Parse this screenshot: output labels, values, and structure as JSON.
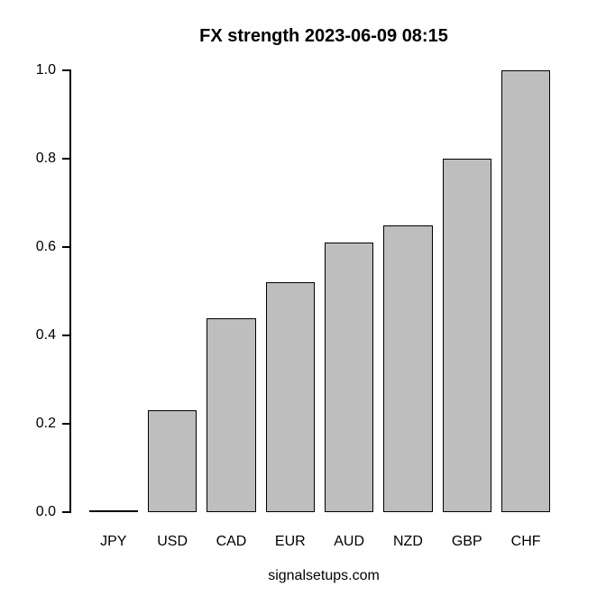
{
  "chart_data": {
    "type": "bar",
    "title": "FX strength 2023-06-09 08:15",
    "categories": [
      "JPY",
      "USD",
      "CAD",
      "EUR",
      "AUD",
      "NZD",
      "GBP",
      "CHF"
    ],
    "values": [
      0.0,
      0.23,
      0.44,
      0.52,
      0.61,
      0.65,
      0.8,
      1.0
    ],
    "xlabel": "",
    "ylabel": "",
    "ylim": [
      0.0,
      1.0
    ],
    "yticks": [
      0.0,
      0.2,
      0.4,
      0.6,
      0.8,
      1.0
    ],
    "ytick_labels": [
      "0.0",
      "0.2",
      "0.4",
      "0.6",
      "0.8",
      "1.0"
    ],
    "grid": false,
    "legend_position": "none",
    "caption": "signalsetups.com",
    "colors": {
      "bar_fill": "#BEBEBE",
      "bar_border": "#000000",
      "axis": "#000000",
      "text": "#000000",
      "background": "#FFFFFF"
    }
  }
}
